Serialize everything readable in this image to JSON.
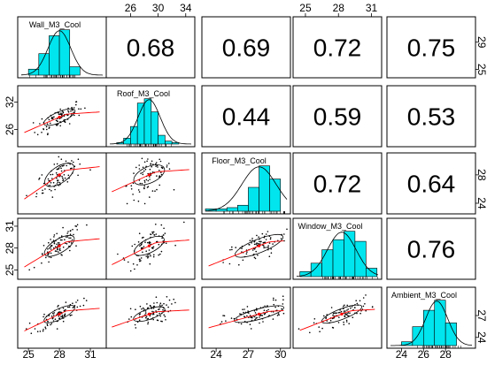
{
  "chart_data": {
    "type": "scatter-matrix",
    "title": "",
    "variables": [
      "Wall_M3_Cool",
      "Roof_M3_Cool",
      "Floor_M3_Cool",
      "Window_M3_Cool",
      "Ambient_M3_Cool"
    ],
    "ranges": [
      [
        24.3,
        32.2
      ],
      [
        23.0,
        34.8
      ],
      [
        23.0,
        30.6
      ],
      [
        24.2,
        31.6
      ],
      [
        23.0,
        30.4
      ]
    ],
    "tick_labels": [
      [
        "25",
        "28",
        "31"
      ],
      [
        "26",
        "30",
        "34"
      ],
      [
        "24",
        "27",
        "30"
      ],
      [
        "25",
        "28",
        "31"
      ],
      [
        "24",
        "26",
        "28"
      ]
    ],
    "tick_values": [
      [
        25,
        28,
        31
      ],
      [
        26,
        30,
        34
      ],
      [
        24,
        27,
        30
      ],
      [
        25,
        28,
        31
      ],
      [
        24,
        26,
        28
      ]
    ],
    "left_axis_ticks": [
      {
        "row": 1,
        "labels": [
          "26",
          "32"
        ],
        "values": [
          26,
          32
        ]
      },
      {
        "row": 3,
        "labels": [
          "25",
          "28",
          "31"
        ],
        "values": [
          25,
          28,
          31
        ]
      }
    ],
    "right_axis_ticks": [
      {
        "row": 0,
        "labels": [
          "25",
          "29"
        ],
        "values": [
          25,
          29
        ]
      },
      {
        "row": 2,
        "labels": [
          "24",
          "28"
        ],
        "values": [
          24,
          28
        ]
      },
      {
        "row": 4,
        "labels": [
          "24",
          "27"
        ],
        "values": [
          24,
          27
        ]
      }
    ],
    "top_axis_ticks": [
      {
        "col": 1,
        "labels": [
          "26",
          "30",
          "34"
        ],
        "values": [
          26,
          30,
          34
        ]
      },
      {
        "col": 3,
        "labels": [
          "25",
          "28",
          "31"
        ],
        "values": [
          25,
          28,
          31
        ]
      }
    ],
    "bottom_axis_ticks": [
      {
        "col": 0,
        "labels": [
          "25",
          "28",
          "31"
        ],
        "values": [
          25,
          28,
          31
        ]
      },
      {
        "col": 2,
        "labels": [
          "24",
          "27",
          "30"
        ],
        "values": [
          24,
          27,
          30
        ]
      },
      {
        "col": 4,
        "labels": [
          "24",
          "26",
          "28"
        ],
        "values": [
          24,
          26,
          28
        ]
      }
    ],
    "correlations": [
      {
        "row": 0,
        "col": 1,
        "value": "0.68"
      },
      {
        "row": 0,
        "col": 2,
        "value": "0.69"
      },
      {
        "row": 0,
        "col": 3,
        "value": "0.72"
      },
      {
        "row": 0,
        "col": 4,
        "value": "0.75"
      },
      {
        "row": 1,
        "col": 2,
        "value": "0.44"
      },
      {
        "row": 1,
        "col": 3,
        "value": "0.59"
      },
      {
        "row": 1,
        "col": 4,
        "value": "0.53"
      },
      {
        "row": 2,
        "col": 3,
        "value": "0.72"
      },
      {
        "row": 2,
        "col": 4,
        "value": "0.64"
      },
      {
        "row": 3,
        "col": 4,
        "value": "0.76"
      }
    ],
    "histograms": [
      {
        "bins": [
          25,
          26,
          27,
          28,
          29,
          30
        ],
        "density": [
          0.05,
          0.18,
          0.33,
          0.38,
          0.07
        ]
      },
      {
        "bins": [
          24,
          25,
          26,
          27,
          28,
          29,
          30,
          31,
          32,
          33
        ],
        "density": [
          0.01,
          0.04,
          0.12,
          0.28,
          0.31,
          0.22,
          0.06,
          0.02,
          0.01
        ]
      },
      {
        "bins": [
          23,
          24,
          25,
          26,
          27,
          28,
          29,
          30
        ],
        "density": [
          0.02,
          0.02,
          0.03,
          0.05,
          0.2,
          0.38,
          0.27
        ]
      },
      {
        "bins": [
          24.5,
          25.5,
          26.5,
          27.5,
          28.5,
          29.5,
          30.5,
          31.5
        ],
        "density": [
          0.03,
          0.08,
          0.16,
          0.22,
          0.27,
          0.21,
          0.05
        ]
      },
      {
        "bins": [
          24,
          25,
          26,
          27,
          28,
          29
        ],
        "density": [
          0.03,
          0.15,
          0.28,
          0.36,
          0.18
        ]
      }
    ],
    "colors": {
      "histogram_fill": "#00e5ee",
      "points": "#000000",
      "loess": "#ff0000",
      "ellipse": "#000000",
      "density_line": "#000000"
    },
    "lower_panels": "scatter with loess smoother and correlation ellipse",
    "upper_panels": "Pearson correlation coefficient",
    "diagonal_panels": "histogram with density curve"
  }
}
